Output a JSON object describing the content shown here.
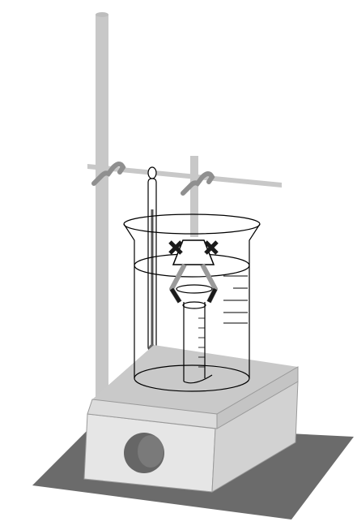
{
  "diagram": {
    "caption": "",
    "components": [
      "retort-stand-rod",
      "clamp-bar",
      "bosshead-clamp",
      "thermometer",
      "beaker",
      "water-bath",
      "stopper",
      "tube-clamp",
      "graduated-tube",
      "hot-plate",
      "hot-plate-knob",
      "base-shadow"
    ],
    "colors": {
      "metal": "#c8c8c8",
      "metal_edge": "#9a9a9a",
      "dark": "#1a1a1a",
      "shadow": "#6b6b6b",
      "plate_top": "#c9c9c9",
      "plate_front": "#e6e6e6",
      "knob": "#666666",
      "glass_line": "#000000",
      "thermometer_bulb": "#666666"
    }
  }
}
